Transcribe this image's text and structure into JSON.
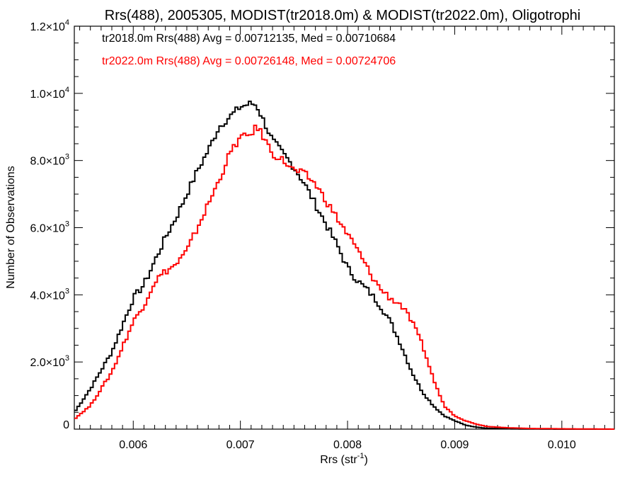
{
  "chart_data": {
    "type": "line",
    "title": "Rrs(488), 2005305, MODIST(tr2018.0m) & MODIST(tr2022.0m), Oligotrophi",
    "xlabel": "Rrs (str",
    "xlabel_sup": "-1",
    "xlabel_suffix": ")",
    "ylabel": "Number of Observations",
    "xlim": [
      0.00545,
      0.01049
    ],
    "ylim": [
      0,
      12000
    ],
    "x_ticks": [
      {
        "value": 0.006,
        "label": "0.006"
      },
      {
        "value": 0.007,
        "label": "0.007"
      },
      {
        "value": 0.008,
        "label": "0.008"
      },
      {
        "value": 0.009,
        "label": "0.009"
      },
      {
        "value": 0.01,
        "label": "0.010"
      }
    ],
    "y_ticks": [
      {
        "value": 0,
        "mant": "0",
        "exp": ""
      },
      {
        "value": 2000,
        "mant": "2.0×10",
        "exp": "3"
      },
      {
        "value": 4000,
        "mant": "4.0×10",
        "exp": "3"
      },
      {
        "value": 6000,
        "mant": "6.0×10",
        "exp": "3"
      },
      {
        "value": 8000,
        "mant": "8.0×10",
        "exp": "3"
      },
      {
        "value": 10000,
        "mant": "1.0×10",
        "exp": "4"
      },
      {
        "value": 12000,
        "mant": "1.2×10",
        "exp": "4"
      }
    ],
    "legend": [
      {
        "text": "tr2018.0m Rrs(488) Avg = 0.00712135, Med = 0.00710684",
        "color": "#000000"
      },
      {
        "text": "tr2022.0m Rrs(488) Avg = 0.00726148, Med = 0.00724706",
        "color": "#ff0000"
      }
    ],
    "series": [
      {
        "color": "#000000",
        "x": [
          0.00545,
          0.0056,
          0.0058,
          0.006,
          0.0061,
          0.0062,
          0.0063,
          0.0064,
          0.0065,
          0.0066,
          0.0067,
          0.0068,
          0.0069,
          0.007,
          0.00705,
          0.0071,
          0.00715,
          0.0072,
          0.0073,
          0.0074,
          0.0075,
          0.0076,
          0.0077,
          0.0078,
          0.0079,
          0.008,
          0.0081,
          0.0082,
          0.0083,
          0.0084,
          0.0085,
          0.0086,
          0.0087,
          0.0088,
          0.0089,
          0.009,
          0.0091,
          0.0092,
          0.0093,
          0.0095,
          0.0097,
          0.01,
          0.01049
        ],
        "y": [
          500,
          1200,
          2300,
          3900,
          4300,
          5000,
          5700,
          6300,
          7000,
          7700,
          8300,
          9000,
          9300,
          9600,
          9650,
          9700,
          9650,
          9300,
          8600,
          8200,
          7800,
          7300,
          6700,
          6100,
          5500,
          4800,
          4400,
          4100,
          3700,
          3200,
          2500,
          1700,
          1100,
          700,
          400,
          250,
          120,
          60,
          25,
          10,
          5,
          0,
          0
        ]
      },
      {
        "color": "#ff0000",
        "x": [
          0.00545,
          0.0056,
          0.0058,
          0.006,
          0.0061,
          0.0062,
          0.0063,
          0.0064,
          0.0065,
          0.0066,
          0.0067,
          0.0068,
          0.0069,
          0.007,
          0.00705,
          0.0071,
          0.00715,
          0.0072,
          0.0073,
          0.0074,
          0.0075,
          0.0076,
          0.0077,
          0.0078,
          0.0079,
          0.008,
          0.0081,
          0.0082,
          0.0083,
          0.0084,
          0.0085,
          0.0086,
          0.0087,
          0.0088,
          0.0089,
          0.009,
          0.0091,
          0.0092,
          0.0093,
          0.0095,
          0.0097,
          0.01,
          0.01049
        ],
        "y": [
          300,
          700,
          1700,
          3200,
          3700,
          4400,
          4700,
          4900,
          5300,
          6000,
          6700,
          7400,
          8200,
          8700,
          8700,
          8800,
          9000,
          8800,
          8200,
          8000,
          7700,
          7600,
          7300,
          6800,
          6300,
          5800,
          5300,
          4700,
          4200,
          3900,
          3700,
          3200,
          2500,
          1500,
          700,
          400,
          250,
          150,
          80,
          40,
          20,
          10,
          0
        ]
      }
    ]
  }
}
